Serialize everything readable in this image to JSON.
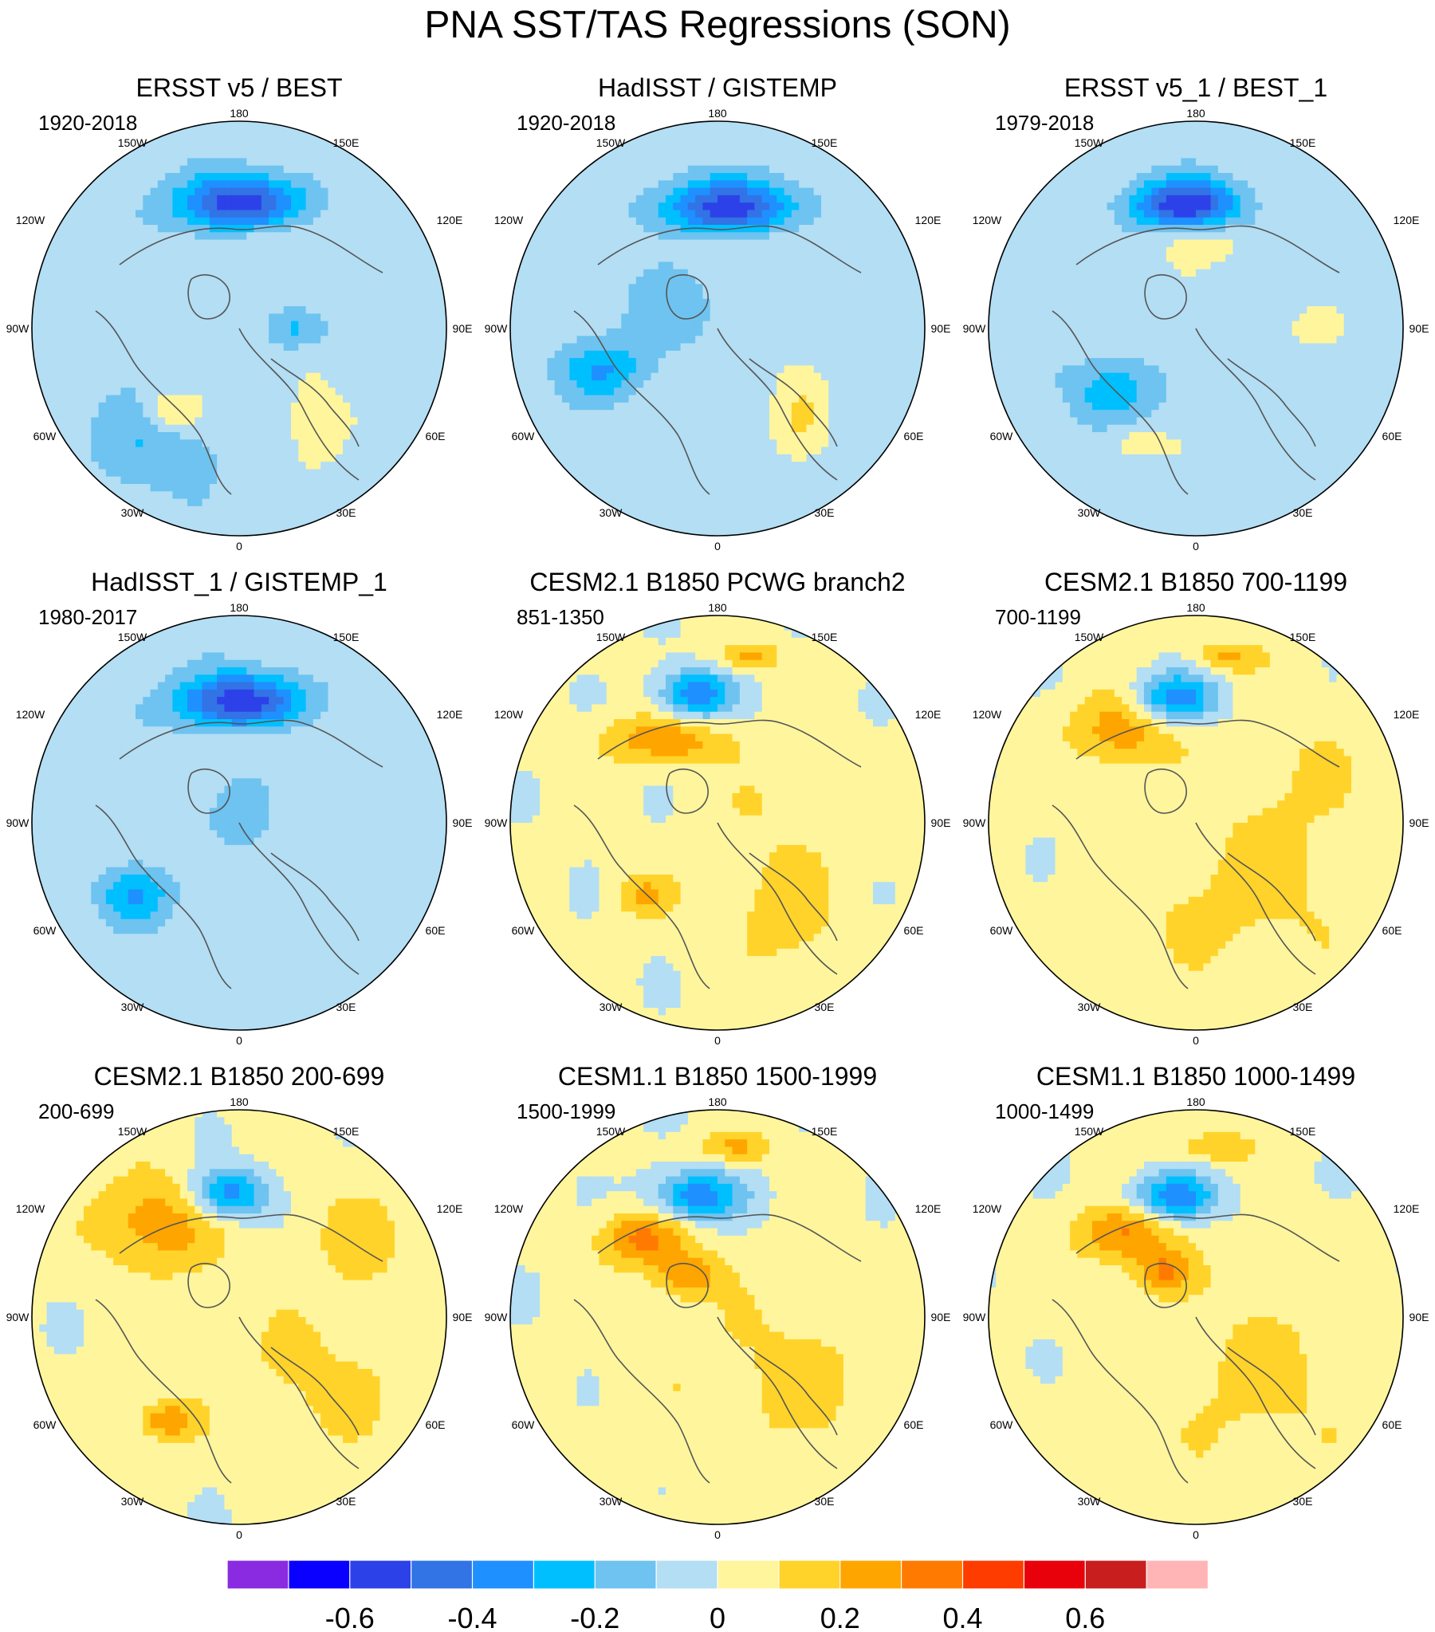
{
  "title": "PNA SST/TAS Regressions (SON)",
  "chart_data": [
    {
      "type": "heatmap",
      "title": "ERSST v5 / BEST",
      "period": "1920-2018",
      "pattern": "obs",
      "blobs": [
        [
          0.0,
          0.6,
          0.3,
          0.14,
          -0.55
        ],
        [
          0.15,
          0.45,
          0.22,
          0.1,
          0.15
        ],
        [
          -0.32,
          -0.4,
          0.14,
          0.1,
          0.22
        ],
        [
          -0.4,
          -0.55,
          0.34,
          0.26,
          -0.15
        ],
        [
          0.35,
          -0.45,
          0.12,
          0.22,
          0.12
        ],
        [
          0.25,
          0.0,
          0.14,
          0.1,
          -0.2
        ]
      ]
    },
    {
      "type": "heatmap",
      "title": "HadISST / GISTEMP",
      "period": "1920-2018",
      "pattern": "obs",
      "blobs": [
        [
          0.05,
          0.58,
          0.34,
          0.14,
          -0.5
        ],
        [
          0.1,
          0.42,
          0.26,
          0.1,
          0.12
        ],
        [
          -0.55,
          -0.2,
          0.22,
          0.14,
          -0.25
        ],
        [
          0.4,
          -0.45,
          0.12,
          0.2,
          0.15
        ],
        [
          -0.2,
          0.1,
          0.3,
          0.24,
          -0.1
        ]
      ]
    },
    {
      "type": "heatmap",
      "title": "ERSST v5_1 / BEST_1",
      "period": "1979-2018",
      "pattern": "obs",
      "blobs": [
        [
          -0.05,
          0.6,
          0.26,
          0.12,
          -0.55
        ],
        [
          0.05,
          0.42,
          0.22,
          0.1,
          0.1
        ],
        [
          -0.4,
          -0.3,
          0.2,
          0.16,
          -0.25
        ],
        [
          -0.3,
          -0.55,
          0.14,
          0.08,
          0.12
        ],
        [
          0.6,
          0.0,
          0.12,
          0.1,
          0.12
        ]
      ]
    },
    {
      "type": "heatmap",
      "title": "HadISST_1 / GISTEMP_1",
      "period": "1980-2017",
      "pattern": "obs",
      "blobs": [
        [
          0.0,
          0.58,
          0.3,
          0.14,
          -0.55
        ],
        [
          0.1,
          0.42,
          0.24,
          0.1,
          0.12
        ],
        [
          -0.5,
          -0.35,
          0.18,
          0.14,
          -0.25
        ],
        [
          0.05,
          0.05,
          0.14,
          0.18,
          -0.15
        ]
      ]
    },
    {
      "type": "heatmap",
      "title": "CESM2.1 B1850 PCWG branch2",
      "period": "851-1350",
      "pattern": "model",
      "blobs": [
        [
          -0.1,
          0.62,
          0.18,
          0.12,
          -0.4
        ],
        [
          -0.25,
          0.4,
          0.32,
          0.12,
          0.25
        ],
        [
          0.15,
          0.8,
          0.16,
          0.07,
          0.2
        ],
        [
          -0.35,
          -0.35,
          0.14,
          0.1,
          0.2
        ],
        [
          0.3,
          -0.45,
          0.3,
          0.3,
          0.12
        ],
        [
          0.4,
          0.1,
          0.4,
          0.3,
          0.08
        ]
      ]
    },
    {
      "type": "heatmap",
      "title": "CESM2.1 B1850 700-1199",
      "period": "700-1199",
      "pattern": "model",
      "blobs": [
        [
          -0.1,
          0.6,
          0.2,
          0.12,
          -0.4
        ],
        [
          -0.35,
          0.45,
          0.25,
          0.18,
          0.25
        ],
        [
          0.15,
          0.8,
          0.16,
          0.07,
          0.2
        ],
        [
          0.2,
          -0.4,
          0.6,
          0.4,
          0.1
        ],
        [
          0.5,
          0.2,
          0.4,
          0.4,
          0.08
        ]
      ]
    },
    {
      "type": "heatmap",
      "title": "CESM2.1 B1850 200-699",
      "period": "200-699",
      "pattern": "model",
      "blobs": [
        [
          -0.05,
          0.6,
          0.18,
          0.12,
          -0.4
        ],
        [
          -0.4,
          0.45,
          0.3,
          0.24,
          0.25
        ],
        [
          -0.35,
          -0.5,
          0.14,
          0.1,
          0.25
        ],
        [
          0.4,
          -0.3,
          0.5,
          0.4,
          0.1
        ],
        [
          0.6,
          0.4,
          0.3,
          0.3,
          0.1
        ]
      ]
    },
    {
      "type": "heatmap",
      "title": "CESM1.1 B1850 1500-1999",
      "period": "1500-1999",
      "pattern": "model",
      "blobs": [
        [
          -0.1,
          0.58,
          0.22,
          0.12,
          -0.4
        ],
        [
          -0.35,
          0.38,
          0.22,
          0.14,
          0.3
        ],
        [
          0.1,
          0.82,
          0.18,
          0.07,
          0.2
        ],
        [
          -0.15,
          0.2,
          0.15,
          0.1,
          0.25
        ],
        [
          0.3,
          -0.3,
          0.6,
          0.5,
          0.1
        ]
      ]
    },
    {
      "type": "heatmap",
      "title": "CESM1.1 B1850 1000-1499",
      "period": "1000-1499",
      "pattern": "model",
      "blobs": [
        [
          -0.1,
          0.58,
          0.2,
          0.11,
          -0.4
        ],
        [
          -0.35,
          0.4,
          0.22,
          0.14,
          0.3
        ],
        [
          0.1,
          0.82,
          0.18,
          0.07,
          0.2
        ],
        [
          -0.15,
          0.22,
          0.14,
          0.1,
          0.25
        ],
        [
          0.3,
          -0.3,
          0.6,
          0.5,
          0.1
        ]
      ]
    }
  ],
  "axis_labels": {
    "top": "180",
    "tl": "150W",
    "tr": "150E",
    "ul": "120W",
    "ur": "120E",
    "l": "90W",
    "r": "90E",
    "ll": "60W",
    "lr": "60E",
    "bl": "30W",
    "br": "30E",
    "bottom": "0"
  },
  "colorbar": {
    "colors": [
      "#8a2be2",
      "#0a00ff",
      "#2d41e9",
      "#3273e6",
      "#1e90ff",
      "#00bfff",
      "#6ec3f0",
      "#b3def4",
      "#fff59d",
      "#ffd32a",
      "#ffa500",
      "#ff7a00",
      "#ff3c00",
      "#e8000b",
      "#c81e1e",
      "#ffb5b5"
    ],
    "thresholds": [
      -0.7,
      -0.6,
      -0.5,
      -0.4,
      -0.3,
      -0.2,
      -0.1,
      0,
      0.1,
      0.2,
      0.3,
      0.4,
      0.5,
      0.6,
      0.7
    ],
    "labels": [
      "-0.6",
      "-0.4",
      "-0.2",
      "0",
      "0.2",
      "0.4",
      "0.6"
    ]
  }
}
